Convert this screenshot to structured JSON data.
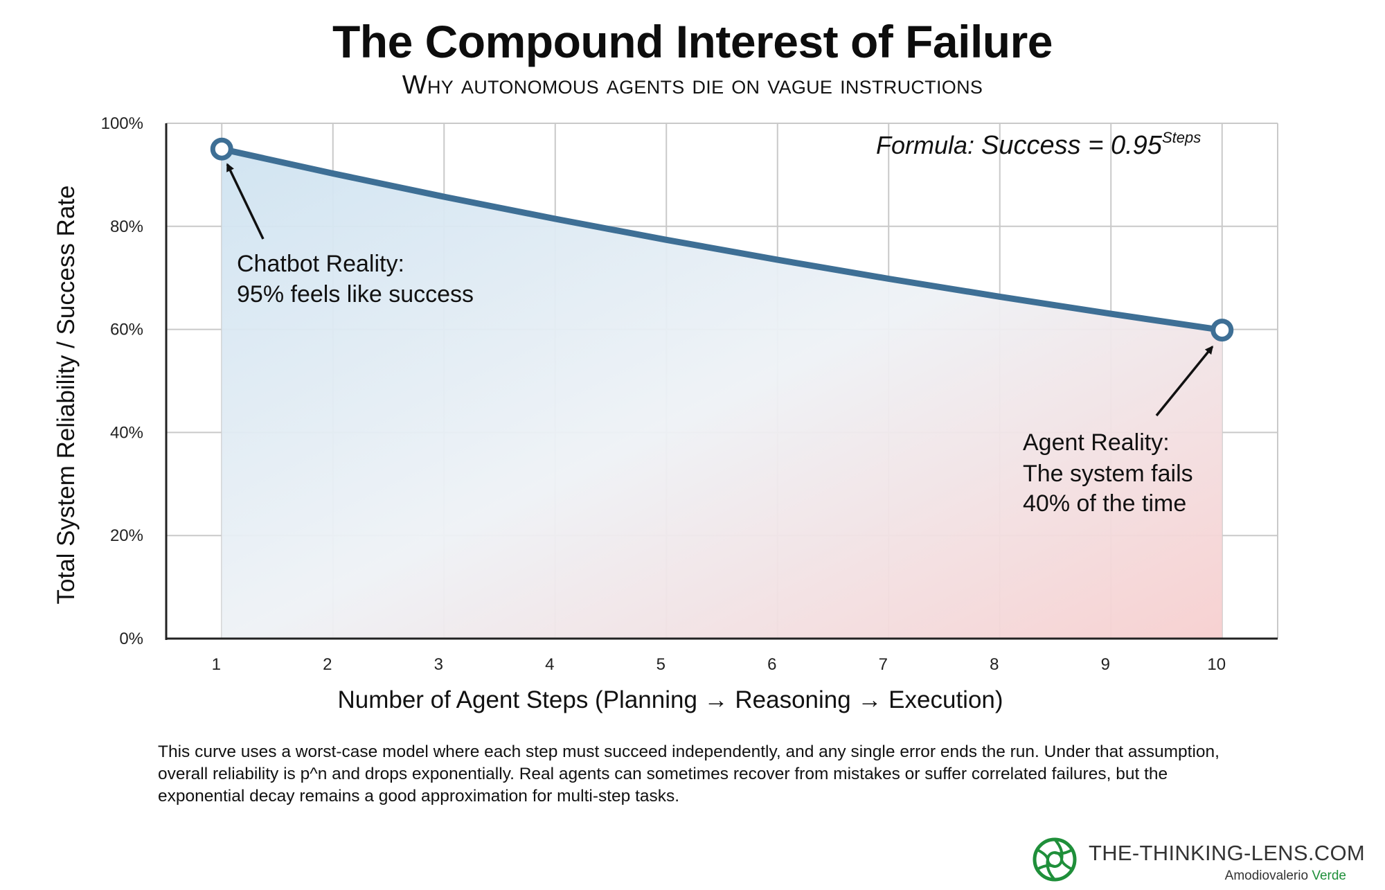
{
  "chart_data": {
    "type": "line",
    "title": "The Compound Interest of Failure",
    "subtitle": "Why autonomous agents die on vague instructions",
    "xlabel": "Number of Agent Steps (Planning → Reasoning → Execution)",
    "ylabel": "Total System Reliability / Success Rate",
    "x": [
      1,
      2,
      3,
      4,
      5,
      6,
      7,
      8,
      9,
      10
    ],
    "series": [
      {
        "values": [
          95,
          90.25,
          85.74,
          81.45,
          77.38,
          73.51,
          69.83,
          66.34,
          63.02,
          59.87
        ]
      }
    ],
    "x_ticks": [
      "1",
      "2",
      "3",
      "4",
      "5",
      "6",
      "7",
      "8",
      "9",
      "10"
    ],
    "y_ticks": [
      "0%",
      "20%",
      "40%",
      "60%",
      "80%",
      "100%"
    ],
    "ylim": [
      0,
      100
    ],
    "xlim": [
      0.5,
      10.5
    ],
    "grid": true,
    "formula": {
      "prefix": "Formula: ",
      "main": "Success = 0.95",
      "exponent": "Steps"
    },
    "annotations": [
      {
        "point_x": 1,
        "point_y": 95,
        "head": "Chatbot Reality:",
        "body": [
          "95% feels like success"
        ]
      },
      {
        "point_x": 10,
        "point_y": 59.87,
        "head": "Agent Reality:",
        "body": [
          "The system fails",
          "40% of the time"
        ]
      }
    ],
    "colors": {
      "line": "#3e6f95",
      "fill_top": "#cfe3f1",
      "fill_bottom": "#f7cfcf",
      "grid": "#c9c9c9",
      "axis": "#222222"
    }
  },
  "caption": "This curve uses a worst-case model where each step must succeed independently, and any single error ends the run. Under that assumption, overall reliability is p^n and drops exponentially. Real agents can sometimes recover from mistakes or suffer correlated failures, but the exponential decay remains a good approximation for multi-step tasks.",
  "brand": {
    "site": "THE-THINKING-LENS.COM",
    "author_first": "Amodiovalerio",
    "author_last": "Verde",
    "logo_icon": "camera-lens-icon",
    "logo_color": "#1f8f3a"
  }
}
